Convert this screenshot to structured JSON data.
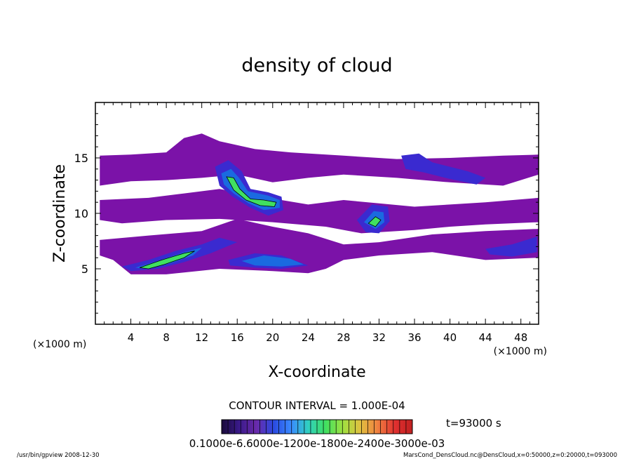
{
  "chart_data": {
    "type": "heatmap",
    "title": "density of cloud",
    "xlabel": "X-coordinate",
    "ylabel": "Z-coordinate",
    "x_unit_left": "(×1000 m)",
    "x_unit_right": "(×1000 m)",
    "xlim": [
      0,
      50
    ],
    "ylim": [
      0,
      20
    ],
    "x_ticks": [
      4,
      8,
      12,
      16,
      20,
      24,
      28,
      32,
      36,
      40,
      44,
      48
    ],
    "y_ticks": [
      5,
      10,
      15
    ],
    "contour_interval": "CONTOUR INTERVAL = 1.000E-04",
    "time_label": "t=93000 s",
    "colorbar_labels": "0.1000e-6.6000e-1200e-1800e-2400e-3000e-03",
    "colorbar_range": [
      0.0001,
      0.003
    ],
    "colors": [
      "#1a0a3a",
      "#3a1a8a",
      "#6a2aaa",
      "#2a4ae0",
      "#3a8aff",
      "#30d0c0",
      "#40e060",
      "#a0e040",
      "#e0c040",
      "#f08040",
      "#e03030",
      "#c02020"
    ],
    "fill_levels": [
      {
        "name": "base",
        "color": "#7b12a8",
        "level": 0.0001
      },
      {
        "name": "low",
        "color": "#3a2ad0",
        "level": 0.0002
      },
      {
        "name": "mid",
        "color": "#1a6ae0",
        "level": 0.0004
      },
      {
        "name": "high",
        "color": "#40e060",
        "level": 0.0008
      }
    ],
    "cloud_regions": [
      {
        "level": "base",
        "points": [
          [
            0.5,
            15.2
          ],
          [
            4,
            15.3
          ],
          [
            8,
            15.5
          ],
          [
            10,
            16.8
          ],
          [
            12,
            17.2
          ],
          [
            14,
            16.5
          ],
          [
            18,
            15.8
          ],
          [
            22,
            15.5
          ],
          [
            28,
            15.2
          ],
          [
            34,
            14.9
          ],
          [
            40,
            15
          ],
          [
            46,
            15.2
          ],
          [
            50,
            15.3
          ],
          [
            50,
            13.5
          ],
          [
            46,
            12.5
          ],
          [
            40,
            12.8
          ],
          [
            34,
            13.2
          ],
          [
            28,
            13.5
          ],
          [
            24,
            13.2
          ],
          [
            20,
            12.8
          ],
          [
            16,
            13.5
          ],
          [
            12,
            13.2
          ],
          [
            8,
            13
          ],
          [
            4,
            12.9
          ],
          [
            0.5,
            12.5
          ]
        ]
      },
      {
        "level": "base",
        "points": [
          [
            0.5,
            11.2
          ],
          [
            6,
            11.4
          ],
          [
            10,
            11.8
          ],
          [
            14,
            12.2
          ],
          [
            18,
            11.6
          ],
          [
            24,
            10.8
          ],
          [
            28,
            11.2
          ],
          [
            32,
            10.9
          ],
          [
            36,
            10.6
          ],
          [
            40,
            10.8
          ],
          [
            44,
            11
          ],
          [
            50,
            11.4
          ],
          [
            50,
            9.2
          ],
          [
            44,
            9
          ],
          [
            40,
            8.8
          ],
          [
            36,
            8.5
          ],
          [
            30,
            8.2
          ],
          [
            26,
            8.8
          ],
          [
            20,
            9.2
          ],
          [
            14,
            9.5
          ],
          [
            8,
            9.4
          ],
          [
            3,
            9.1
          ],
          [
            0.5,
            9.4
          ]
        ]
      },
      {
        "level": "base",
        "points": [
          [
            0.5,
            7.6
          ],
          [
            6,
            8
          ],
          [
            12,
            8.4
          ],
          [
            16,
            9.5
          ],
          [
            20,
            8.8
          ],
          [
            24,
            8.2
          ],
          [
            28,
            7.2
          ],
          [
            32,
            7.4
          ],
          [
            38,
            8.1
          ],
          [
            44,
            8.4
          ],
          [
            50,
            8.6
          ],
          [
            50,
            6
          ],
          [
            44,
            5.8
          ],
          [
            38,
            6.5
          ],
          [
            32,
            6.2
          ],
          [
            28,
            5.8
          ],
          [
            26,
            5
          ],
          [
            24,
            4.6
          ],
          [
            20,
            4.8
          ],
          [
            14,
            5
          ],
          [
            8,
            4.5
          ],
          [
            4,
            4.5
          ],
          [
            2,
            5.8
          ],
          [
            0.5,
            6.2
          ]
        ]
      },
      {
        "level": "low",
        "points": [
          [
            3,
            5.2
          ],
          [
            6,
            5.8
          ],
          [
            9,
            6.6
          ],
          [
            12,
            7.2
          ],
          [
            14,
            7.8
          ],
          [
            16,
            7.4
          ],
          [
            13,
            6.4
          ],
          [
            10,
            5.6
          ],
          [
            7,
            5
          ],
          [
            4,
            4.8
          ]
        ]
      },
      {
        "level": "low",
        "points": [
          [
            13.5,
            14.2
          ],
          [
            15,
            14.8
          ],
          [
            16.5,
            13.8
          ],
          [
            17.5,
            12.2
          ],
          [
            19.5,
            11.9
          ],
          [
            21,
            11.5
          ],
          [
            21.2,
            10.3
          ],
          [
            19.5,
            9.8
          ],
          [
            17.5,
            10.5
          ],
          [
            15.5,
            11.5
          ],
          [
            14,
            12.5
          ]
        ]
      },
      {
        "level": "low",
        "points": [
          [
            29.5,
            9.4
          ],
          [
            31.2,
            10.8
          ],
          [
            33,
            10.6
          ],
          [
            33.2,
            9.3
          ],
          [
            32,
            8.2
          ],
          [
            30.5,
            8.3
          ]
        ]
      },
      {
        "level": "low",
        "points": [
          [
            34.5,
            15.2
          ],
          [
            36.5,
            15.4
          ],
          [
            38,
            14.6
          ],
          [
            42,
            13.8
          ],
          [
            44,
            13.2
          ],
          [
            43,
            12.6
          ],
          [
            40,
            13.1
          ],
          [
            37,
            13.7
          ],
          [
            35,
            14
          ]
        ]
      },
      {
        "level": "low",
        "points": [
          [
            44,
            6.8
          ],
          [
            47,
            7.2
          ],
          [
            49.8,
            7.9
          ],
          [
            49.8,
            6.5
          ],
          [
            47,
            6.1
          ],
          [
            44.5,
            6.3
          ]
        ]
      },
      {
        "level": "low",
        "points": [
          [
            15,
            5.8
          ],
          [
            18,
            6.4
          ],
          [
            21,
            6.2
          ],
          [
            24,
            5.3
          ],
          [
            21,
            5
          ],
          [
            18,
            5.1
          ],
          [
            15.2,
            5.3
          ]
        ]
      },
      {
        "level": "mid",
        "points": [
          [
            4.5,
            5.1
          ],
          [
            7,
            5.7
          ],
          [
            10,
            6.5
          ],
          [
            12,
            6.9
          ],
          [
            11,
            6.2
          ],
          [
            8.5,
            5.5
          ],
          [
            6,
            5
          ]
        ]
      },
      {
        "level": "mid",
        "points": [
          [
            14.2,
            13.6
          ],
          [
            15.3,
            14
          ],
          [
            16.2,
            13.2
          ],
          [
            17.2,
            12
          ],
          [
            19.5,
            11.6
          ],
          [
            20.8,
            11.2
          ],
          [
            20.8,
            10.5
          ],
          [
            19,
            10.3
          ],
          [
            17.3,
            10.9
          ],
          [
            15.6,
            11.8
          ],
          [
            14.5,
            12.6
          ]
        ]
      },
      {
        "level": "mid",
        "points": [
          [
            30.3,
            9.2
          ],
          [
            31.4,
            10.2
          ],
          [
            32.5,
            10.1
          ],
          [
            32.6,
            9.2
          ],
          [
            31.6,
            8.6
          ]
        ]
      },
      {
        "level": "mid",
        "points": [
          [
            16.5,
            5.7
          ],
          [
            19,
            6.2
          ],
          [
            22,
            5.9
          ],
          [
            23.5,
            5.4
          ],
          [
            21,
            5.2
          ],
          [
            18,
            5.3
          ]
        ]
      },
      {
        "level": "high",
        "points": [
          [
            5,
            5.1
          ],
          [
            7.5,
            5.8
          ],
          [
            10,
            6.4
          ],
          [
            11.2,
            6.6
          ],
          [
            10,
            6
          ],
          [
            7.8,
            5.4
          ],
          [
            6,
            5
          ]
        ]
      },
      {
        "level": "high",
        "points": [
          [
            14.8,
            13.3
          ],
          [
            15.6,
            13.2
          ],
          [
            16.3,
            12.2
          ],
          [
            17.5,
            11.3
          ],
          [
            19,
            11.2
          ],
          [
            20.4,
            11
          ],
          [
            20.2,
            10.6
          ],
          [
            18.6,
            10.7
          ],
          [
            17,
            11.2
          ],
          [
            15.6,
            12.1
          ]
        ]
      },
      {
        "level": "high",
        "points": [
          [
            30.8,
            9.1
          ],
          [
            31.6,
            9.7
          ],
          [
            32.2,
            9.4
          ],
          [
            31.6,
            8.8
          ]
        ]
      }
    ]
  },
  "footer": {
    "left": "/usr/bin/gpview 2008-12-30",
    "right": "MarsCond_DensCloud.nc@DensCloud,x=0:50000,z=0:20000,t=093000"
  }
}
